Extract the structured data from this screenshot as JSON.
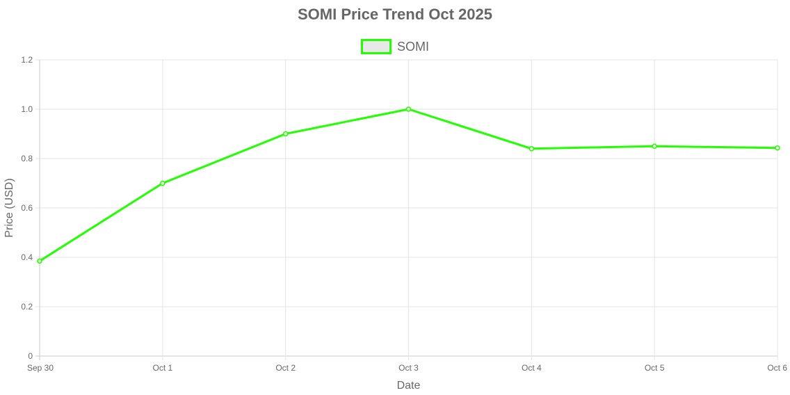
{
  "chart_data": {
    "type": "line",
    "title": "SOMI Price Trend Oct 2025",
    "xlabel": "Date",
    "ylabel": "Price (USD)",
    "categories": [
      "Sep 30",
      "Oct 1",
      "Oct 2",
      "Oct 3",
      "Oct 4",
      "Oct 5",
      "Oct 6"
    ],
    "series": [
      {
        "name": "SOMI",
        "values": [
          0.385,
          0.7,
          0.9,
          1.0,
          0.84,
          0.85,
          0.843
        ],
        "color": "#22ff00"
      }
    ],
    "ylim": [
      0,
      1.2
    ],
    "yticks": [
      "0",
      "0.2",
      "0.4",
      "0.6",
      "0.8",
      "1.0",
      "1.2"
    ],
    "grid": true,
    "legend_position": "top-center"
  }
}
